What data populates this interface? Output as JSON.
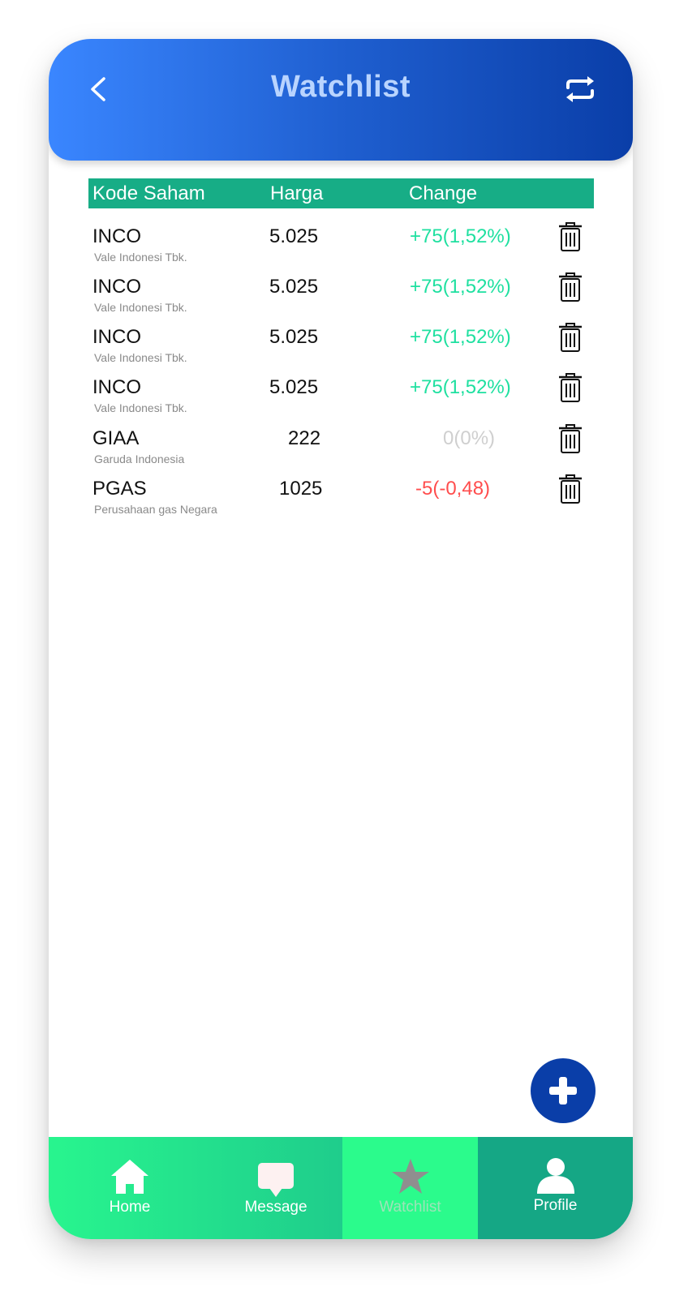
{
  "header": {
    "title": "Watchlist",
    "back_icon": "chevron-left-icon",
    "refresh_icon": "refresh-icon"
  },
  "table": {
    "columns": [
      "Kode Saham",
      "Harga",
      "Change"
    ],
    "rows": [
      {
        "code": "INCO",
        "name": "Vale Indonesi Tbk.",
        "price": "5.025",
        "change": "+75(1,52%)",
        "trend": "up"
      },
      {
        "code": "INCO",
        "name": "Vale Indonesi Tbk.",
        "price": "5.025",
        "change": "+75(1,52%)",
        "trend": "up"
      },
      {
        "code": "INCO",
        "name": "Vale Indonesi Tbk.",
        "price": "5.025",
        "change": "+75(1,52%)",
        "trend": "up"
      },
      {
        "code": "INCO",
        "name": "Vale Indonesi Tbk.",
        "price": "5.025",
        "change": "+75(1,52%)",
        "trend": "up"
      },
      {
        "code": "GIAA",
        "name": "Garuda Indonesia",
        "price": "222",
        "change": "0(0%)",
        "trend": "flat"
      },
      {
        "code": "PGAS",
        "name": "Perusahaan gas Negara",
        "price": "1025",
        "change": "-5(-0,48)",
        "trend": "down"
      }
    ]
  },
  "colors": {
    "up": "#1fe0a0",
    "flat": "#cfcfcf",
    "down": "#ff4d4d",
    "accent": "#0a3ea8",
    "table_header": "#17ad86"
  },
  "nav": {
    "items": [
      {
        "label": "Home",
        "icon": "home-icon"
      },
      {
        "label": "Message",
        "icon": "message-icon"
      },
      {
        "label": "Watchlist",
        "icon": "star-icon",
        "active": true
      },
      {
        "label": "Profile",
        "icon": "user-icon"
      }
    ]
  },
  "fab": {
    "icon": "plus-icon"
  }
}
